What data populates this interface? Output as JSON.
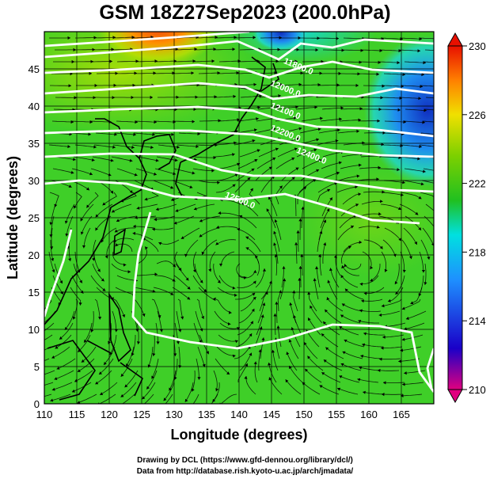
{
  "title": "GSM 18Z27Sep2023 (200.0hPa)",
  "xlabel": "Longitude (degrees)",
  "ylabel": "Latitude  (degrees)",
  "credits": [
    "Drawing by DCL (https://www.gfd-dennou.org/library/dcl/)",
    "Data from http://database.rish.kyoto-u.ac.jp/arch/jmadata/"
  ],
  "chart_data": {
    "type": "heatmap",
    "xlim": [
      110,
      170
    ],
    "ylim": [
      0,
      50
    ],
    "x_ticks": [
      "110",
      "115",
      "120",
      "125",
      "130",
      "135",
      "140",
      "145",
      "150",
      "155",
      "160",
      "165"
    ],
    "y_ticks": [
      "0",
      "5",
      "10",
      "15",
      "20",
      "25",
      "30",
      "35",
      "40",
      "45"
    ],
    "grid": true,
    "colorbar": {
      "range": [
        210,
        230
      ],
      "tick_labels": [
        "210",
        "214",
        "218",
        "222",
        "226",
        "230"
      ],
      "colors": [
        "#e0007f",
        "#1a00c8",
        "#1e90ff",
        "#00e0e0",
        "#20c020",
        "#7cd000",
        "#f0e000",
        "#ff8000",
        "#e81000"
      ]
    },
    "contour_labels": [
      {
        "text": "11800.0",
        "lon": 149,
        "lat": 45
      },
      {
        "text": "12000.0",
        "lon": 147,
        "lat": 42
      },
      {
        "text": "12100.0",
        "lon": 147,
        "lat": 39
      },
      {
        "text": "12200.0",
        "lon": 147,
        "lat": 36
      },
      {
        "text": "12400.0",
        "lon": 151,
        "lat": 33
      },
      {
        "text": "12500.0",
        "lon": 140,
        "lat": 27
      }
    ],
    "colors": {
      "field_base": "#3fcf28",
      "warm_max": "#e83010",
      "cold_max": "#1030c0",
      "contour": "#ffffff",
      "coast": "#000000"
    }
  }
}
